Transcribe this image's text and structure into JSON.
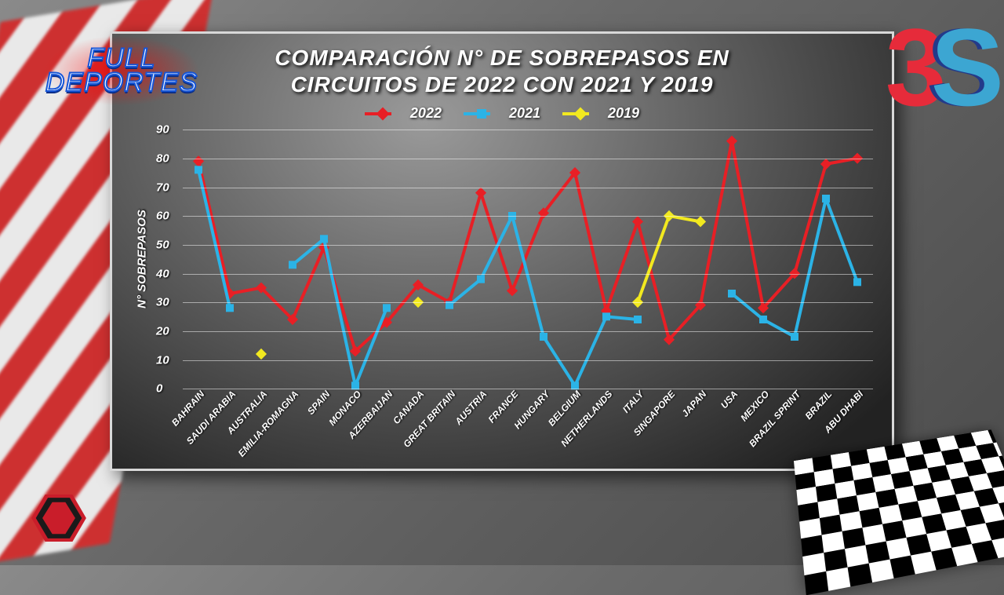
{
  "brand": {
    "line1": "FULL",
    "line2": "DEPORTES"
  },
  "chart": {
    "type": "line",
    "title_line1": "COMPARACIÓN N° DE SOBREPASOS EN",
    "title_line2": "CIRCUITOS DE 2022 CON 2021 Y 2019",
    "title_fontsize": 28,
    "ylabel": "N° SOBREPASOS",
    "label_fontsize": 15,
    "ylim": [
      0,
      90
    ],
    "ytick_step": 10,
    "background": "radial-gradient #9a9a9a to #222",
    "panel_border": "#d8d8d8",
    "grid_color": "rgba(255,255,255,0.5)",
    "line_width": 4,
    "marker_size": 10,
    "categories": [
      "BAHRAIN",
      "SAUDI ARABIA",
      "AUSTRALIA",
      "EMILIA-ROMAGNA",
      "SPAIN",
      "MONACO",
      "AZERBAIJAN",
      "CANADA",
      "GREAT BRITAIN",
      "AUSTRIA",
      "FRANCE",
      "HUNGARY",
      "BELGIUM",
      "NETHERLANDS",
      "ITALY",
      "SINGAPORE",
      "JAPAN",
      "USA",
      "MEXICO",
      "BRAZIL SPRINT",
      "BRAZIL",
      "ABU DHABI"
    ],
    "series": [
      {
        "name": "2022",
        "color": "#e81f25",
        "marker": "diamond",
        "values": [
          79,
          33,
          35,
          24,
          49,
          13,
          23,
          36,
          30,
          68,
          34,
          61,
          75,
          27,
          58,
          17,
          29,
          86,
          28,
          40,
          78,
          80
        ]
      },
      {
        "name": "2021",
        "color": "#2bb3e6",
        "marker": "square",
        "values": [
          76,
          28,
          null,
          43,
          52,
          1,
          28,
          null,
          29,
          38,
          60,
          18,
          1,
          25,
          24,
          null,
          null,
          33,
          24,
          18,
          66,
          37
        ]
      },
      {
        "name": "2019",
        "color": "#f2e91f",
        "marker": "diamond",
        "values": [
          null,
          null,
          12,
          null,
          null,
          null,
          null,
          30,
          null,
          null,
          null,
          null,
          null,
          null,
          30,
          60,
          58,
          null,
          null,
          null,
          null,
          null
        ]
      }
    ]
  }
}
